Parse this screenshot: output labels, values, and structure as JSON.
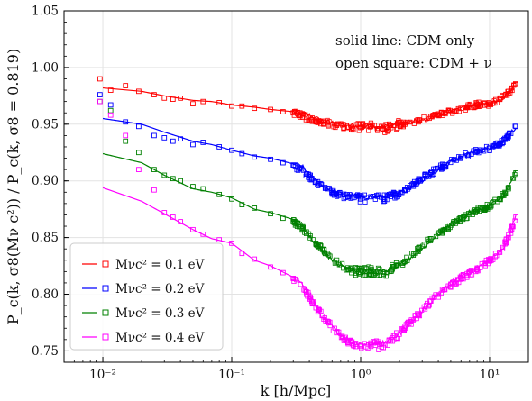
{
  "chart_data": {
    "type": "line",
    "title": "",
    "xlabel": "k [h/Mpc]",
    "ylabel": "P_c(k, σ8(Mν c²)) / P_c(k, σ8 = 0.819)",
    "x_scale": "log",
    "xlim": [
      0.005,
      20
    ],
    "ylim": [
      0.74,
      1.05
    ],
    "grid": true,
    "legend_position": "lower-left",
    "x_tick_labels": [
      "10⁻²",
      "10⁻¹",
      "10⁰",
      "10¹"
    ],
    "x_tick_values": [
      0.01,
      0.1,
      1,
      10
    ],
    "y_tick_values": [
      0.75,
      0.8,
      0.85,
      0.9,
      0.95,
      1.0,
      1.05
    ],
    "y_tick_labels": [
      "0.75",
      "0.80",
      "0.85",
      "0.90",
      "0.95",
      "1.00",
      "1.05"
    ],
    "annotations": [
      "solid line: CDM only",
      "open square: CDM + ν"
    ],
    "series": [
      {
        "name": "Mνc² = 0.1 eV",
        "color": "#ff0000",
        "line_points": [
          [
            0.01,
            0.982
          ],
          [
            0.02,
            0.979
          ],
          [
            0.03,
            0.975
          ],
          [
            0.05,
            0.971
          ],
          [
            0.07,
            0.97
          ],
          [
            0.1,
            0.967
          ],
          [
            0.15,
            0.965
          ],
          [
            0.2,
            0.963
          ],
          [
            0.3,
            0.961
          ],
          [
            0.35,
            0.959
          ],
          [
            0.4,
            0.958
          ],
          [
            0.5,
            0.953
          ],
          [
            0.7,
            0.95
          ],
          [
            1,
            0.948
          ],
          [
            1.5,
            0.948
          ],
          [
            2,
            0.95
          ],
          [
            3,
            0.953
          ],
          [
            4,
            0.958
          ],
          [
            5,
            0.962
          ],
          [
            7,
            0.966
          ],
          [
            10,
            0.968
          ],
          [
            13,
            0.974
          ],
          [
            16,
            0.985
          ]
        ],
        "square_points": [
          [
            0.0095,
            0.99
          ],
          [
            0.0115,
            0.98
          ],
          [
            0.015,
            0.984
          ],
          [
            0.019,
            0.979
          ],
          [
            0.025,
            0.976
          ],
          [
            0.03,
            0.973
          ],
          [
            0.035,
            0.972
          ],
          [
            0.04,
            0.973
          ],
          [
            0.05,
            0.968
          ],
          [
            0.06,
            0.97
          ],
          [
            0.08,
            0.969
          ],
          [
            0.1,
            0.966
          ],
          [
            0.12,
            0.966
          ],
          [
            0.15,
            0.964
          ],
          [
            0.2,
            0.963
          ],
          [
            0.25,
            0.961
          ],
          [
            0.3,
            0.96
          ],
          [
            0.38,
            0.956
          ],
          [
            0.45,
            0.952
          ],
          [
            0.55,
            0.951
          ],
          [
            0.65,
            0.949
          ],
          [
            0.8,
            0.947
          ],
          [
            1,
            0.947
          ],
          [
            1.2,
            0.948
          ],
          [
            1.5,
            0.946
          ],
          [
            1.8,
            0.949
          ],
          [
            2.2,
            0.95
          ],
          [
            2.8,
            0.952
          ],
          [
            3.5,
            0.957
          ],
          [
            4.5,
            0.96
          ],
          [
            6,
            0.964
          ],
          [
            8,
            0.967
          ],
          [
            10,
            0.968
          ],
          [
            12,
            0.972
          ],
          [
            14,
            0.977
          ],
          [
            16,
            0.985
          ]
        ]
      },
      {
        "name": "Mνc² = 0.2 eV",
        "color": "#0000ff",
        "line_points": [
          [
            0.01,
            0.955
          ],
          [
            0.02,
            0.95
          ],
          [
            0.03,
            0.943
          ],
          [
            0.05,
            0.935
          ],
          [
            0.07,
            0.932
          ],
          [
            0.1,
            0.927
          ],
          [
            0.15,
            0.922
          ],
          [
            0.2,
            0.92
          ],
          [
            0.3,
            0.915
          ],
          [
            0.35,
            0.913
          ],
          [
            0.4,
            0.905
          ],
          [
            0.5,
            0.896
          ],
          [
            0.7,
            0.889
          ],
          [
            1,
            0.886
          ],
          [
            1.5,
            0.886
          ],
          [
            2,
            0.889
          ],
          [
            3,
            0.9
          ],
          [
            4,
            0.91
          ],
          [
            5,
            0.917
          ],
          [
            7,
            0.925
          ],
          [
            10,
            0.929
          ],
          [
            13,
            0.936
          ],
          [
            16,
            0.948
          ]
        ],
        "square_points": [
          [
            0.0095,
            0.976
          ],
          [
            0.0115,
            0.967
          ],
          [
            0.015,
            0.952
          ],
          [
            0.019,
            0.948
          ],
          [
            0.025,
            0.94
          ],
          [
            0.03,
            0.938
          ],
          [
            0.035,
            0.935
          ],
          [
            0.04,
            0.937
          ],
          [
            0.05,
            0.932
          ],
          [
            0.06,
            0.934
          ],
          [
            0.08,
            0.93
          ],
          [
            0.1,
            0.927
          ],
          [
            0.12,
            0.924
          ],
          [
            0.15,
            0.921
          ],
          [
            0.2,
            0.919
          ],
          [
            0.25,
            0.916
          ],
          [
            0.3,
            0.914
          ],
          [
            0.38,
            0.906
          ],
          [
            0.45,
            0.899
          ],
          [
            0.55,
            0.893
          ],
          [
            0.65,
            0.888
          ],
          [
            0.8,
            0.886
          ],
          [
            1,
            0.884
          ],
          [
            1.2,
            0.886
          ],
          [
            1.5,
            0.884
          ],
          [
            1.8,
            0.888
          ],
          [
            2.2,
            0.892
          ],
          [
            2.8,
            0.9
          ],
          [
            3.5,
            0.907
          ],
          [
            4.5,
            0.914
          ],
          [
            6,
            0.921
          ],
          [
            8,
            0.926
          ],
          [
            10,
            0.929
          ],
          [
            12,
            0.933
          ],
          [
            14,
            0.939
          ],
          [
            16,
            0.948
          ]
        ]
      },
      {
        "name": "Mνc² = 0.3 eV",
        "color": "#008000",
        "line_points": [
          [
            0.01,
            0.924
          ],
          [
            0.02,
            0.916
          ],
          [
            0.03,
            0.905
          ],
          [
            0.05,
            0.893
          ],
          [
            0.07,
            0.89
          ],
          [
            0.1,
            0.885
          ],
          [
            0.15,
            0.875
          ],
          [
            0.2,
            0.872
          ],
          [
            0.3,
            0.866
          ],
          [
            0.35,
            0.862
          ],
          [
            0.4,
            0.852
          ],
          [
            0.5,
            0.838
          ],
          [
            0.7,
            0.825
          ],
          [
            1,
            0.82
          ],
          [
            1.5,
            0.82
          ],
          [
            2,
            0.825
          ],
          [
            3,
            0.84
          ],
          [
            4,
            0.853
          ],
          [
            5,
            0.862
          ],
          [
            7,
            0.872
          ],
          [
            10,
            0.878
          ],
          [
            13,
            0.887
          ],
          [
            16,
            0.908
          ]
        ],
        "square_points": [
          [
            0.0095,
            0.97
          ],
          [
            0.0115,
            0.962
          ],
          [
            0.015,
            0.935
          ],
          [
            0.019,
            0.925
          ],
          [
            0.025,
            0.91
          ],
          [
            0.03,
            0.905
          ],
          [
            0.035,
            0.902
          ],
          [
            0.04,
            0.9
          ],
          [
            0.05,
            0.895
          ],
          [
            0.06,
            0.893
          ],
          [
            0.08,
            0.888
          ],
          [
            0.1,
            0.884
          ],
          [
            0.12,
            0.879
          ],
          [
            0.15,
            0.876
          ],
          [
            0.2,
            0.871
          ],
          [
            0.25,
            0.867
          ],
          [
            0.3,
            0.864
          ],
          [
            0.38,
            0.855
          ],
          [
            0.45,
            0.845
          ],
          [
            0.55,
            0.836
          ],
          [
            0.65,
            0.828
          ],
          [
            0.8,
            0.822
          ],
          [
            1,
            0.819
          ],
          [
            1.2,
            0.821
          ],
          [
            1.5,
            0.818
          ],
          [
            1.8,
            0.824
          ],
          [
            2.2,
            0.829
          ],
          [
            2.8,
            0.839
          ],
          [
            3.5,
            0.849
          ],
          [
            4.5,
            0.857
          ],
          [
            6,
            0.866
          ],
          [
            8,
            0.874
          ],
          [
            10,
            0.878
          ],
          [
            12,
            0.884
          ],
          [
            14,
            0.893
          ],
          [
            16,
            0.907
          ]
        ]
      },
      {
        "name": "Mνc² = 0.4 eV",
        "color": "#ff00ff",
        "line_points": [
          [
            0.01,
            0.894
          ],
          [
            0.02,
            0.882
          ],
          [
            0.03,
            0.871
          ],
          [
            0.05,
            0.857
          ],
          [
            0.07,
            0.849
          ],
          [
            0.1,
            0.845
          ],
          [
            0.15,
            0.83
          ],
          [
            0.2,
            0.825
          ],
          [
            0.3,
            0.815
          ],
          [
            0.35,
            0.81
          ],
          [
            0.4,
            0.8
          ],
          [
            0.5,
            0.78
          ],
          [
            0.7,
            0.764
          ],
          [
            1,
            0.756
          ],
          [
            1.5,
            0.757
          ],
          [
            2,
            0.765
          ],
          [
            3,
            0.785
          ],
          [
            4,
            0.8
          ],
          [
            5,
            0.81
          ],
          [
            7,
            0.82
          ],
          [
            10,
            0.83
          ],
          [
            13,
            0.842
          ],
          [
            16,
            0.87
          ]
        ],
        "square_points": [
          [
            0.0095,
            0.97
          ],
          [
            0.0115,
            0.958
          ],
          [
            0.015,
            0.94
          ],
          [
            0.019,
            0.91
          ],
          [
            0.025,
            0.892
          ],
          [
            0.03,
            0.872
          ],
          [
            0.035,
            0.868
          ],
          [
            0.04,
            0.864
          ],
          [
            0.05,
            0.857
          ],
          [
            0.06,
            0.853
          ],
          [
            0.08,
            0.848
          ],
          [
            0.1,
            0.845
          ],
          [
            0.12,
            0.836
          ],
          [
            0.15,
            0.831
          ],
          [
            0.2,
            0.824
          ],
          [
            0.25,
            0.819
          ],
          [
            0.3,
            0.814
          ],
          [
            0.38,
            0.802
          ],
          [
            0.45,
            0.788
          ],
          [
            0.55,
            0.776
          ],
          [
            0.65,
            0.766
          ],
          [
            0.8,
            0.758
          ],
          [
            1,
            0.754
          ],
          [
            1.2,
            0.757
          ],
          [
            1.5,
            0.753
          ],
          [
            1.8,
            0.76
          ],
          [
            2.2,
            0.77
          ],
          [
            2.8,
            0.782
          ],
          [
            3.5,
            0.794
          ],
          [
            4.5,
            0.804
          ],
          [
            6,
            0.814
          ],
          [
            8,
            0.822
          ],
          [
            10,
            0.83
          ],
          [
            12,
            0.837
          ],
          [
            14,
            0.85
          ],
          [
            16,
            0.868
          ]
        ]
      }
    ]
  }
}
